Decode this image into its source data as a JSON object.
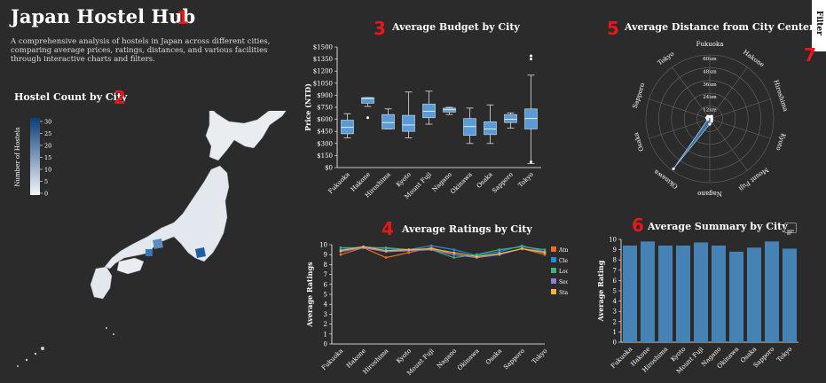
{
  "header": {
    "title": "Japan Hostel Hub",
    "description": "A comprehensive analysis of hostels in Japan across different cities, comparing average prices, ratings, distances, and various facilities through interactive charts and filters.",
    "filter_label": "Filter"
  },
  "markers": [
    "1",
    "2",
    "3",
    "4",
    "5",
    "6",
    "7"
  ],
  "colors": {
    "background": "#2b2b2b",
    "bar": "#4682b4",
    "marker": "#e8171b",
    "atmosphere": "#f46d1e",
    "cleanliness": "#1f8fe0",
    "location": "#3fb27a",
    "security": "#8a7fd8",
    "staff": "#f2b441"
  },
  "map": {
    "title": "Hostel Count by City",
    "legend_label": "Number of Hostels",
    "legend_ticks": [
      "30",
      "25",
      "20",
      "15",
      "10",
      "5",
      "0"
    ]
  },
  "chart_data": [
    {
      "type": "box",
      "title": "Average Budget by City",
      "ylabel": "Price (NTD)",
      "categories": [
        "Fukuoka",
        "Hakone",
        "Hiroshima",
        "Kyoto",
        "Mount Fuji",
        "Nagano",
        "Okinawa",
        "Osaka",
        "Sapporo",
        "Tokyo"
      ],
      "ylim": [
        50,
        1500
      ],
      "yticks": [
        "$1500",
        "$1350",
        "$1200",
        "$1050",
        "$900",
        "$750",
        "$600",
        "$450",
        "$300",
        "$150",
        "$0"
      ],
      "boxes": [
        {
          "min": 370,
          "q1": 420,
          "median": 500,
          "q3": 590,
          "max": 670
        },
        {
          "min": 760,
          "q1": 800,
          "median": 860,
          "q3": 870,
          "max": 870,
          "outliers": [
            620
          ]
        },
        {
          "min": 480,
          "q1": 480,
          "median": 560,
          "q3": 660,
          "max": 730
        },
        {
          "min": 370,
          "q1": 450,
          "median": 530,
          "q3": 650,
          "max": 940
        },
        {
          "min": 540,
          "q1": 620,
          "median": 700,
          "q3": 790,
          "max": 950
        },
        {
          "min": 660,
          "q1": 690,
          "median": 720,
          "q3": 740,
          "max": 750
        },
        {
          "min": 300,
          "q1": 400,
          "median": 510,
          "q3": 610,
          "max": 740
        },
        {
          "min": 300,
          "q1": 410,
          "median": 480,
          "q3": 570,
          "max": 780
        },
        {
          "min": 490,
          "q1": 560,
          "median": 600,
          "q3": 660,
          "max": 680
        },
        {
          "min": 50,
          "q1": 480,
          "median": 610,
          "q3": 730,
          "max": 1150,
          "outliers": [
            1350,
            1390,
            70
          ]
        }
      ]
    },
    {
      "type": "line",
      "title": "Average Ratings by City",
      "ylabel": "Average Ratings",
      "categories": [
        "Fukuoka",
        "Hakone",
        "Hiroshima",
        "Kyoto",
        "Mount Fuji",
        "Nagano",
        "Okinawa",
        "Osaka",
        "Sapporo",
        "Tokyo"
      ],
      "ylim": [
        0,
        10
      ],
      "yticks": [
        "10",
        "9",
        "8",
        "7",
        "6",
        "5",
        "4",
        "3",
        "2",
        "1",
        "0"
      ],
      "series": [
        {
          "name": "Atmosphere",
          "values": [
            9.0,
            9.7,
            8.7,
            9.2,
            9.7,
            9.0,
            8.7,
            9.0,
            9.6,
            9.0
          ]
        },
        {
          "name": "Cleanliness",
          "values": [
            9.5,
            9.8,
            9.6,
            9.5,
            9.9,
            9.5,
            8.9,
            9.3,
            9.9,
            9.3
          ]
        },
        {
          "name": "Location",
          "values": [
            9.7,
            9.7,
            9.7,
            9.5,
            9.5,
            8.7,
            9.0,
            9.5,
            9.8,
            9.5
          ]
        },
        {
          "name": "Security",
          "values": [
            9.3,
            9.7,
            9.3,
            9.4,
            9.5,
            9.0,
            8.7,
            9.0,
            9.6,
            9.3
          ]
        },
        {
          "name": "Staff",
          "values": [
            9.4,
            9.8,
            9.4,
            9.5,
            9.6,
            9.2,
            8.8,
            9.1,
            9.6,
            9.2
          ]
        }
      ]
    },
    {
      "type": "radar",
      "title": "Average Distance from City Center",
      "categories": [
        "Fukuoka",
        "Hakone",
        "Hiroshima",
        "Kyoto",
        "Mount Fuji",
        "Nagano",
        "Okinawa",
        "Osaka",
        "Sapporo",
        "Tokyo"
      ],
      "rings": [
        "60km",
        "48km",
        "36km",
        "24km",
        "12km"
      ],
      "values": [
        2,
        3,
        2,
        2,
        3,
        5,
        58,
        2,
        3,
        3
      ]
    },
    {
      "type": "bar",
      "title": "Average Summary by City",
      "ylabel": "Average Rating",
      "categories": [
        "Fukuoka",
        "Hakone",
        "Hiroshima",
        "Kyoto",
        "Mount Fuji",
        "Nagano",
        "Okinawa",
        "Osaka",
        "Sapporo",
        "Tokyo"
      ],
      "ylim": [
        0,
        10
      ],
      "yticks": [
        "10",
        "9",
        "8",
        "7",
        "6",
        "5",
        "4",
        "3",
        "2",
        "1",
        "0"
      ],
      "values": [
        9.4,
        9.8,
        9.4,
        9.4,
        9.7,
        9.4,
        8.8,
        9.2,
        9.8,
        9.1
      ]
    }
  ]
}
